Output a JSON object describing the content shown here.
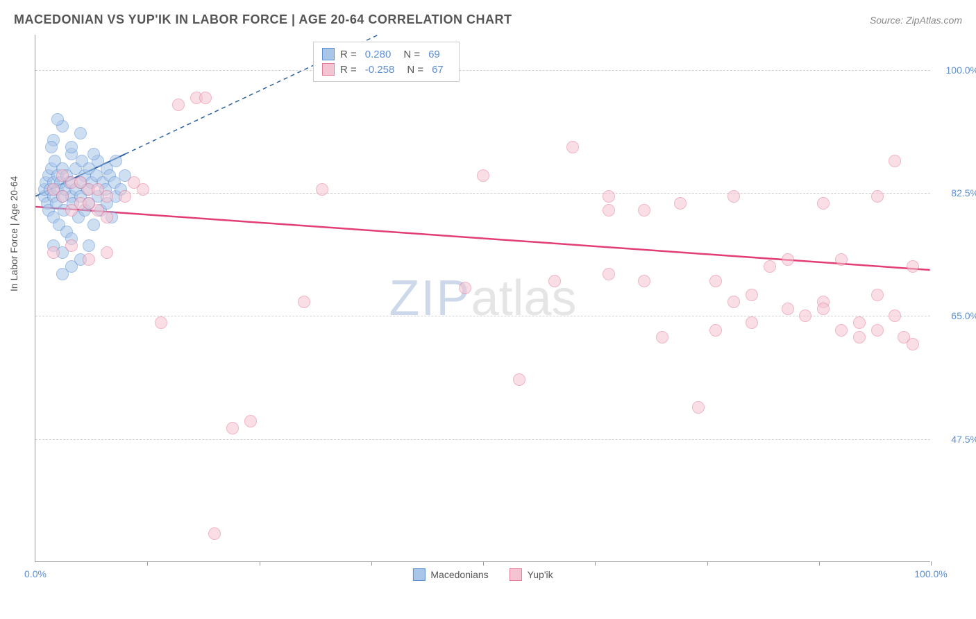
{
  "header": {
    "title": "MACEDONIAN VS YUP'IK IN LABOR FORCE | AGE 20-64 CORRELATION CHART",
    "source": "Source: ZipAtlas.com"
  },
  "chart": {
    "type": "scatter",
    "ylabel": "In Labor Force | Age 20-64",
    "xlim": [
      0,
      100
    ],
    "ylim": [
      30,
      105
    ],
    "yticks": [
      47.5,
      65.0,
      82.5,
      100.0
    ],
    "ytick_labels": [
      "47.5%",
      "65.0%",
      "82.5%",
      "100.0%"
    ],
    "xtick_marks": [
      12.5,
      25,
      37.5,
      50,
      62.5,
      75,
      87.5,
      100
    ],
    "xtick_labels": [
      {
        "x": 0,
        "label": "0.0%"
      },
      {
        "x": 100,
        "label": "100.0%"
      }
    ],
    "grid_color": "#d0d0d0",
    "background_color": "#ffffff",
    "watermark": {
      "zip": "ZIP",
      "atlas": "atlas"
    },
    "marker_radius": 9,
    "series": [
      {
        "name": "Macedonians",
        "fill": "#a9c5e8",
        "stroke": "#5b8fd4",
        "fill_opacity": 0.55,
        "R": "0.280",
        "N": "69",
        "trend": {
          "x1": 0,
          "y1": 82,
          "x2": 10,
          "y2": 88,
          "dash_x2": 45,
          "dash_y2": 109,
          "color": "#2b5fa4",
          "width": 2
        },
        "points": [
          [
            1,
            82
          ],
          [
            1,
            83
          ],
          [
            1.2,
            84
          ],
          [
            1.3,
            81
          ],
          [
            1.5,
            85
          ],
          [
            1.5,
            80
          ],
          [
            1.6,
            83
          ],
          [
            1.8,
            86
          ],
          [
            2,
            82
          ],
          [
            2,
            84
          ],
          [
            2,
            79
          ],
          [
            2.2,
            87
          ],
          [
            2.3,
            81
          ],
          [
            2.5,
            83
          ],
          [
            2.5,
            85
          ],
          [
            2.6,
            78
          ],
          [
            2.8,
            84
          ],
          [
            3,
            82
          ],
          [
            3,
            86
          ],
          [
            3.2,
            80
          ],
          [
            3.3,
            83
          ],
          [
            3.5,
            85
          ],
          [
            3.5,
            77
          ],
          [
            3.8,
            84
          ],
          [
            4,
            82
          ],
          [
            4,
            88
          ],
          [
            4.2,
            81
          ],
          [
            4.5,
            83
          ],
          [
            4.5,
            86
          ],
          [
            4.8,
            79
          ],
          [
            5,
            84
          ],
          [
            5,
            82
          ],
          [
            5.2,
            87
          ],
          [
            5.5,
            80
          ],
          [
            5.5,
            85
          ],
          [
            5.8,
            83
          ],
          [
            6,
            81
          ],
          [
            6,
            86
          ],
          [
            6.3,
            84
          ],
          [
            6.5,
            78
          ],
          [
            6.8,
            85
          ],
          [
            7,
            82
          ],
          [
            7,
            87
          ],
          [
            7.3,
            80
          ],
          [
            7.5,
            84
          ],
          [
            7.8,
            83
          ],
          [
            8,
            86
          ],
          [
            8,
            81
          ],
          [
            8.3,
            85
          ],
          [
            8.5,
            79
          ],
          [
            8.8,
            84
          ],
          [
            9,
            82
          ],
          [
            9,
            87
          ],
          [
            9.5,
            83
          ],
          [
            10,
            85
          ],
          [
            2,
            90
          ],
          [
            3,
            92
          ],
          [
            4,
            89
          ],
          [
            5,
            91
          ],
          [
            2,
            75
          ],
          [
            3,
            74
          ],
          [
            4,
            76
          ],
          [
            5,
            73
          ],
          [
            6,
            75
          ],
          [
            3,
            71
          ],
          [
            4,
            72
          ],
          [
            2.5,
            93
          ],
          [
            1.8,
            89
          ],
          [
            6.5,
            88
          ]
        ]
      },
      {
        "name": "Yup'ik",
        "fill": "#f5c4d2",
        "stroke": "#e47a9a",
        "fill_opacity": 0.55,
        "R": "-0.258",
        "N": "67",
        "trend": {
          "x1": 0,
          "y1": 80.5,
          "x2": 100,
          "y2": 71.5,
          "color": "#e23d74",
          "width": 2.5
        },
        "points": [
          [
            2,
            83
          ],
          [
            3,
            82
          ],
          [
            4,
            84
          ],
          [
            5,
            81
          ],
          [
            6,
            83
          ],
          [
            7,
            80
          ],
          [
            8,
            82
          ],
          [
            3,
            85
          ],
          [
            5,
            84
          ],
          [
            7,
            83
          ],
          [
            4,
            80
          ],
          [
            6,
            81
          ],
          [
            8,
            79
          ],
          [
            2,
            74
          ],
          [
            4,
            75
          ],
          [
            6,
            73
          ],
          [
            8,
            74
          ],
          [
            10,
            82
          ],
          [
            11,
            84
          ],
          [
            12,
            83
          ],
          [
            14,
            64
          ],
          [
            16,
            95
          ],
          [
            18,
            96
          ],
          [
            19,
            96
          ],
          [
            20,
            34
          ],
          [
            22,
            49
          ],
          [
            24,
            50
          ],
          [
            30,
            67
          ],
          [
            32,
            83
          ],
          [
            48,
            69
          ],
          [
            50,
            85
          ],
          [
            54,
            56
          ],
          [
            58,
            70
          ],
          [
            60,
            89
          ],
          [
            64,
            82
          ],
          [
            64,
            80
          ],
          [
            64,
            71
          ],
          [
            68,
            80
          ],
          [
            68,
            70
          ],
          [
            70,
            62
          ],
          [
            72,
            81
          ],
          [
            74,
            52
          ],
          [
            76,
            70
          ],
          [
            76,
            63
          ],
          [
            78,
            67
          ],
          [
            78,
            82
          ],
          [
            80,
            68
          ],
          [
            80,
            64
          ],
          [
            82,
            72
          ],
          [
            84,
            73
          ],
          [
            84,
            66
          ],
          [
            86,
            65
          ],
          [
            88,
            81
          ],
          [
            88,
            67
          ],
          [
            88,
            66
          ],
          [
            90,
            73
          ],
          [
            90,
            63
          ],
          [
            92,
            64
          ],
          [
            92,
            62
          ],
          [
            94,
            82
          ],
          [
            94,
            68
          ],
          [
            94,
            63
          ],
          [
            96,
            87
          ],
          [
            96,
            65
          ],
          [
            97,
            62
          ],
          [
            98,
            72
          ],
          [
            98,
            61
          ]
        ]
      }
    ],
    "bottom_legend": [
      "Macedonians",
      "Yup'ik"
    ]
  }
}
